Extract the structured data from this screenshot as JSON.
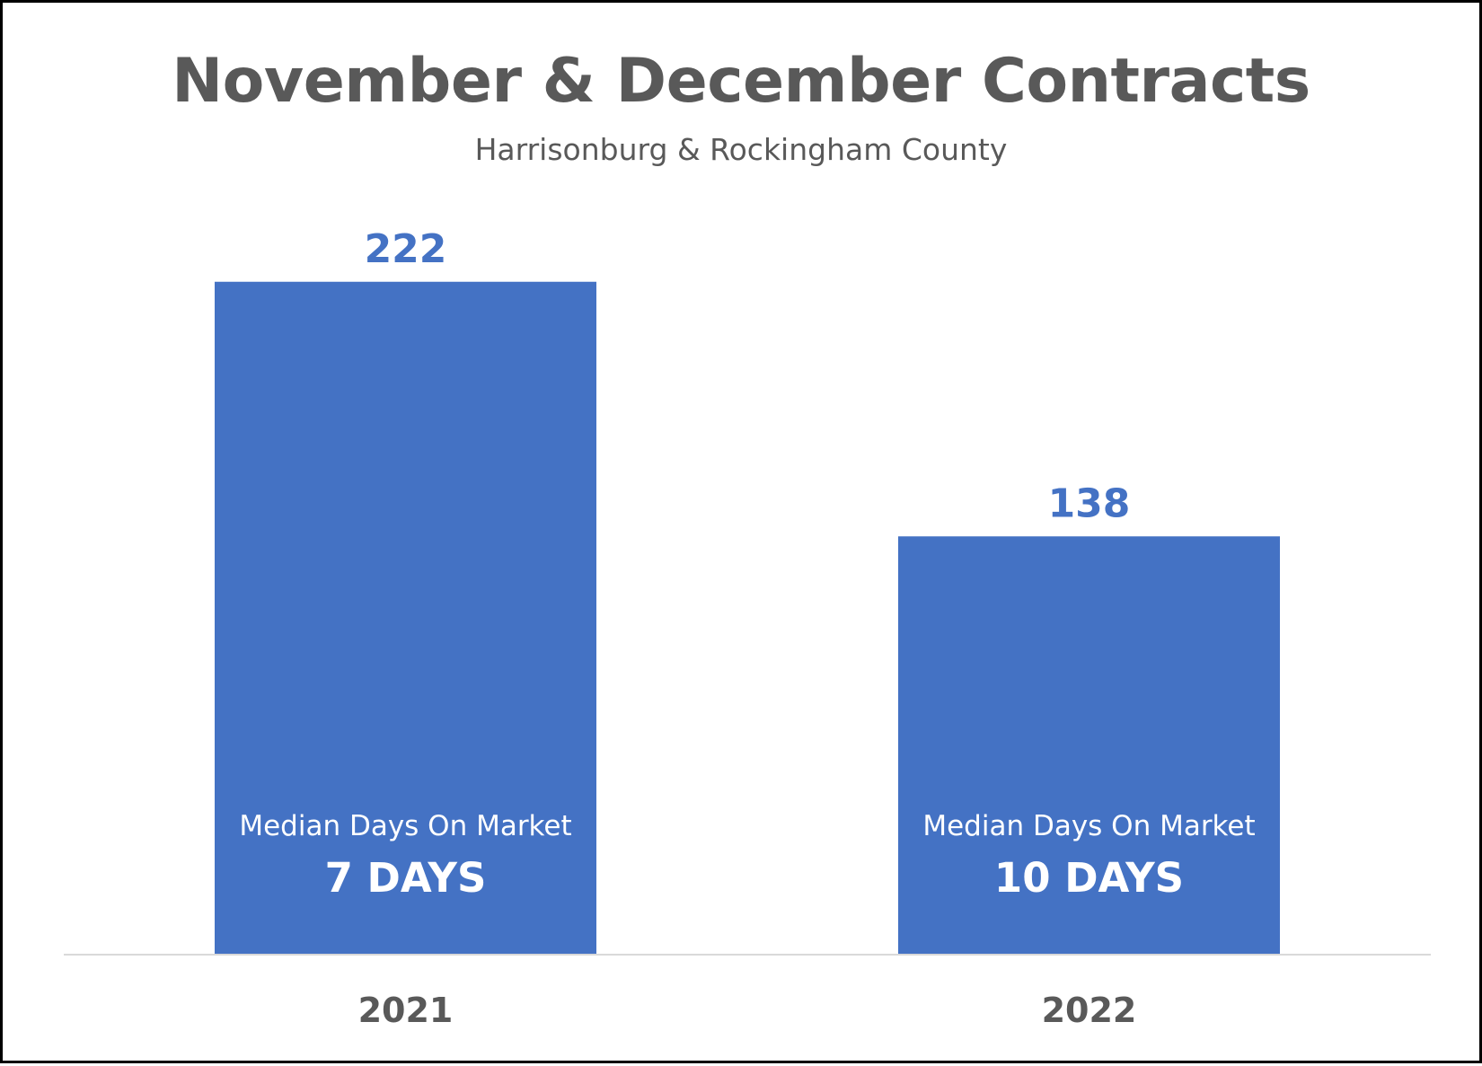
{
  "chart_data": {
    "type": "bar",
    "title": "November & December Contracts",
    "subtitle": "Harrisonburg & Rockingham County",
    "categories": [
      "2021",
      "2022"
    ],
    "values": [
      222,
      138
    ],
    "data_labels": [
      "222",
      "138"
    ],
    "annotations": [
      {
        "label": "Median Days On Market",
        "value": "7 DAYS"
      },
      {
        "label": "Median Days On Market",
        "value": "10 DAYS"
      }
    ],
    "xlabel": "",
    "ylabel": "",
    "ylim": [
      0,
      250
    ],
    "grid": false,
    "legend": "none",
    "colors": {
      "bar": "#4472C4",
      "data_label": "#4472C4",
      "title": "#595959",
      "axis_label": "#595959",
      "axis_line": "#d9d9d9",
      "annotation": "#ffffff"
    }
  }
}
